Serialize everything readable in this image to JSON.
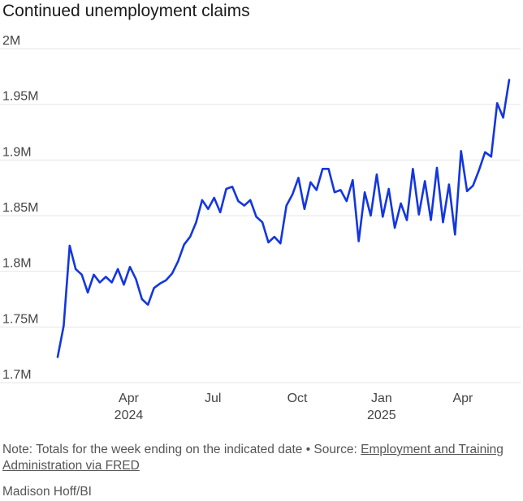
{
  "title": "Continued unemployment claims",
  "note": {
    "prefix": "Note: Totals for the week ending on the indicated date • Source: ",
    "link_text": "Employment and Training Administration via FRED"
  },
  "credit": "Madison Hoff/BI",
  "colors": {
    "line": "#1336e0",
    "grid": "#e6e6e6",
    "text": "#444444"
  },
  "chart_data": {
    "type": "line",
    "title": "Continued unemployment claims",
    "xlabel": "",
    "ylabel": "",
    "ylim": [
      1700000,
      2000000
    ],
    "y_ticks": [
      {
        "value": 2000000,
        "label": "2M"
      },
      {
        "value": 1950000,
        "label": "1.95M"
      },
      {
        "value": 1900000,
        "label": "1.9M"
      },
      {
        "value": 1850000,
        "label": "1.85M"
      },
      {
        "value": 1800000,
        "label": "1.8M"
      },
      {
        "value": 1750000,
        "label": "1.75M"
      },
      {
        "value": 1700000,
        "label": "1.7M"
      }
    ],
    "x_ticks": [
      {
        "label": "Apr",
        "sublabel": "2024",
        "week": 11.8
      },
      {
        "label": "Jul",
        "sublabel": "",
        "week": 25.8
      },
      {
        "label": "Oct",
        "sublabel": "",
        "week": 39.8
      },
      {
        "label": "Jan",
        "sublabel": "2025",
        "week": 53.8
      },
      {
        "label": "Apr",
        "sublabel": "",
        "week": 67.3
      }
    ],
    "grid": true,
    "legend": "none",
    "series": [
      {
        "values": [
          1723000,
          1751000,
          1823000,
          1802000,
          1797000,
          1781000,
          1797000,
          1790000,
          1795000,
          1790000,
          1802000,
          1788000,
          1804000,
          1793000,
          1775000,
          1770000,
          1785000,
          1789000,
          1792000,
          1798000,
          1809000,
          1824000,
          1831000,
          1844000,
          1864000,
          1856000,
          1866000,
          1853000,
          1874000,
          1876000,
          1863000,
          1859000,
          1864000,
          1849000,
          1844000,
          1826000,
          1831000,
          1825000,
          1859000,
          1869000,
          1884000,
          1856000,
          1880000,
          1873000,
          1892000,
          1892000,
          1871000,
          1873000,
          1863000,
          1882000,
          1827000,
          1871000,
          1850000,
          1887000,
          1849000,
          1874000,
          1839000,
          1861000,
          1846000,
          1892000,
          1851000,
          1881000,
          1846000,
          1893000,
          1844000,
          1878000,
          1833000,
          1908000,
          1872000,
          1877000,
          1891000,
          1907000,
          1903000,
          1951000,
          1938000,
          1972000
        ]
      }
    ]
  }
}
